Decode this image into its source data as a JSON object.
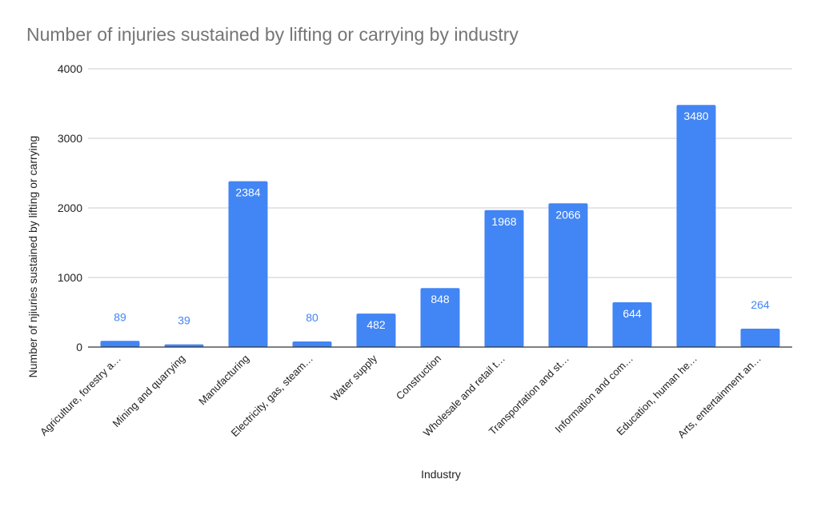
{
  "chart_data": {
    "type": "bar",
    "title": "Number of injuries sustained by lifting or carrying by industry",
    "xlabel": "Industry",
    "ylabel": "Number of njiuries sustained by lifting or carrying",
    "ylim": [
      0,
      4000
    ],
    "yticks": [
      0,
      1000,
      2000,
      3000,
      4000
    ],
    "grid": true,
    "legend": "none",
    "bar_color": "#4285f4",
    "label_color_inside": "#ffffff",
    "label_color_outside": "#4285f4",
    "categories": [
      "Agriculture, forestry a…",
      "Mining and quarrying",
      "Manufacturing",
      "Electricity, gas, steam…",
      "Water supply",
      "Construction",
      "Wholesale and retail t…",
      "Transportation  and st…",
      "Information and com…",
      "Education, human he…",
      "Arts, entertainment an…"
    ],
    "values": [
      89,
      39,
      2384,
      80,
      482,
      848,
      1968,
      2066,
      644,
      3480,
      264
    ]
  }
}
